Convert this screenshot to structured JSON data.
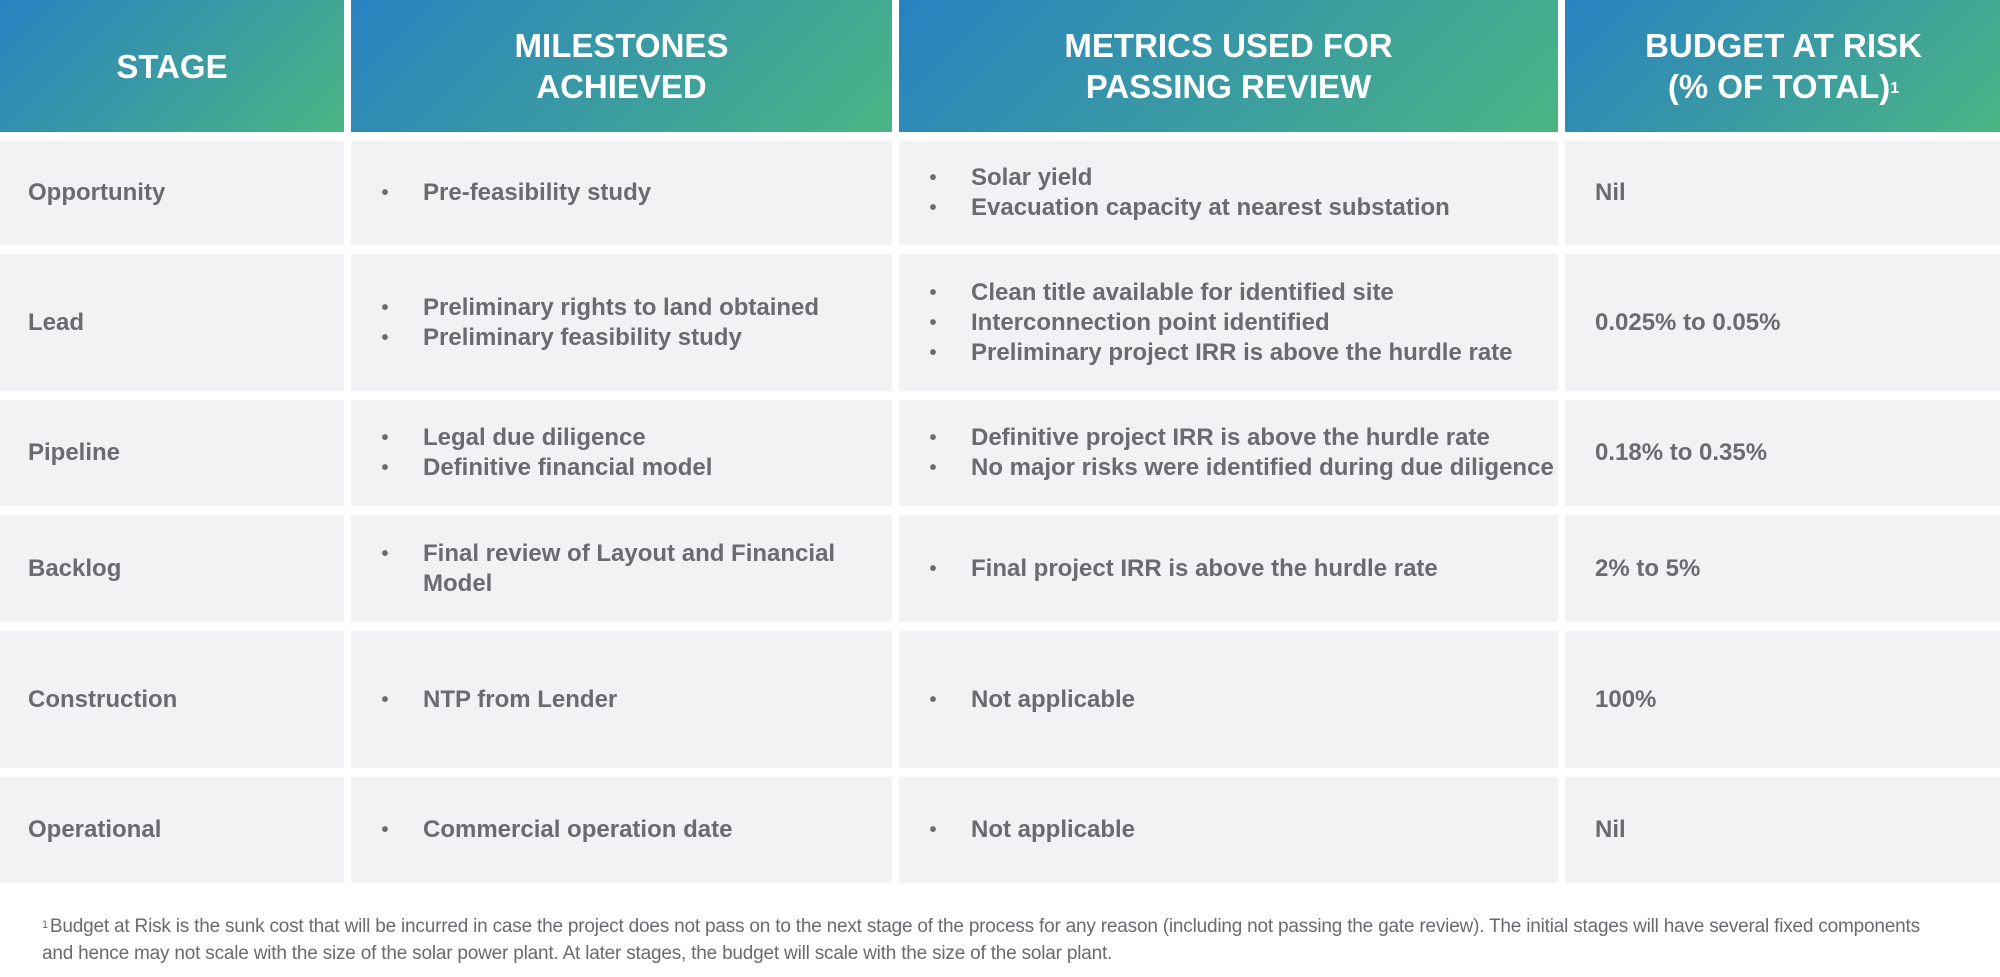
{
  "table": {
    "headers": [
      {
        "line1": "STAGE",
        "line2": "",
        "sup": ""
      },
      {
        "line1": "MILESTONES",
        "line2": "ACHIEVED",
        "sup": ""
      },
      {
        "line1": "METRICS USED FOR",
        "line2": "PASSING REVIEW",
        "sup": ""
      },
      {
        "line1": "BUDGET AT RISK",
        "line2": "(% OF TOTAL)",
        "sup": "1"
      }
    ],
    "rows": [
      {
        "stage": "Opportunity",
        "milestones": [
          "Pre-feasibility study"
        ],
        "metrics": [
          "Solar yield",
          "Evacuation capacity at nearest substation"
        ],
        "budget": "Nil"
      },
      {
        "stage": "Lead",
        "milestones": [
          "Preliminary rights to land obtained",
          "Preliminary feasibility study"
        ],
        "metrics": [
          "Clean title available for identified site",
          "Interconnection point identified",
          "Preliminary project IRR is above the hurdle rate"
        ],
        "budget": "0.025% to 0.05%"
      },
      {
        "stage": "Pipeline",
        "milestones": [
          "Legal due diligence",
          "Definitive financial model"
        ],
        "metrics": [
          "Definitive project IRR is above the hurdle rate",
          "No major risks were identified during due diligence"
        ],
        "budget": "0.18% to 0.35%"
      },
      {
        "stage": "Backlog",
        "milestones": [
          "Final review of Layout and Financial Model"
        ],
        "metrics": [
          "Final project IRR is above the hurdle rate"
        ],
        "budget": "2% to 5%"
      },
      {
        "stage": "Construction",
        "milestones": [
          "NTP from Lender"
        ],
        "metrics": [
          "Not applicable"
        ],
        "budget": "100%"
      },
      {
        "stage": "Operational",
        "milestones": [
          "Commercial operation date"
        ],
        "metrics": [
          "Not applicable"
        ],
        "budget": "Nil"
      }
    ]
  },
  "footnote": {
    "marker": "1",
    "text": "Budget at Risk is the sunk cost that will be incurred in case the project does not pass on to the next stage of the process for any reason (including not passing the gate review). The initial stages will have several fixed components and hence may not scale with the size of the solar power plant. At later stages, the budget will scale with the size of the solar plant."
  },
  "bullet_glyph": "•",
  "colors": {
    "header_gradient_start": "#2a81c1",
    "header_gradient_end": "#4bb583",
    "cell_background": "#f2f2f4",
    "body_text": "#6a6a6f",
    "header_text": "#ffffff"
  }
}
